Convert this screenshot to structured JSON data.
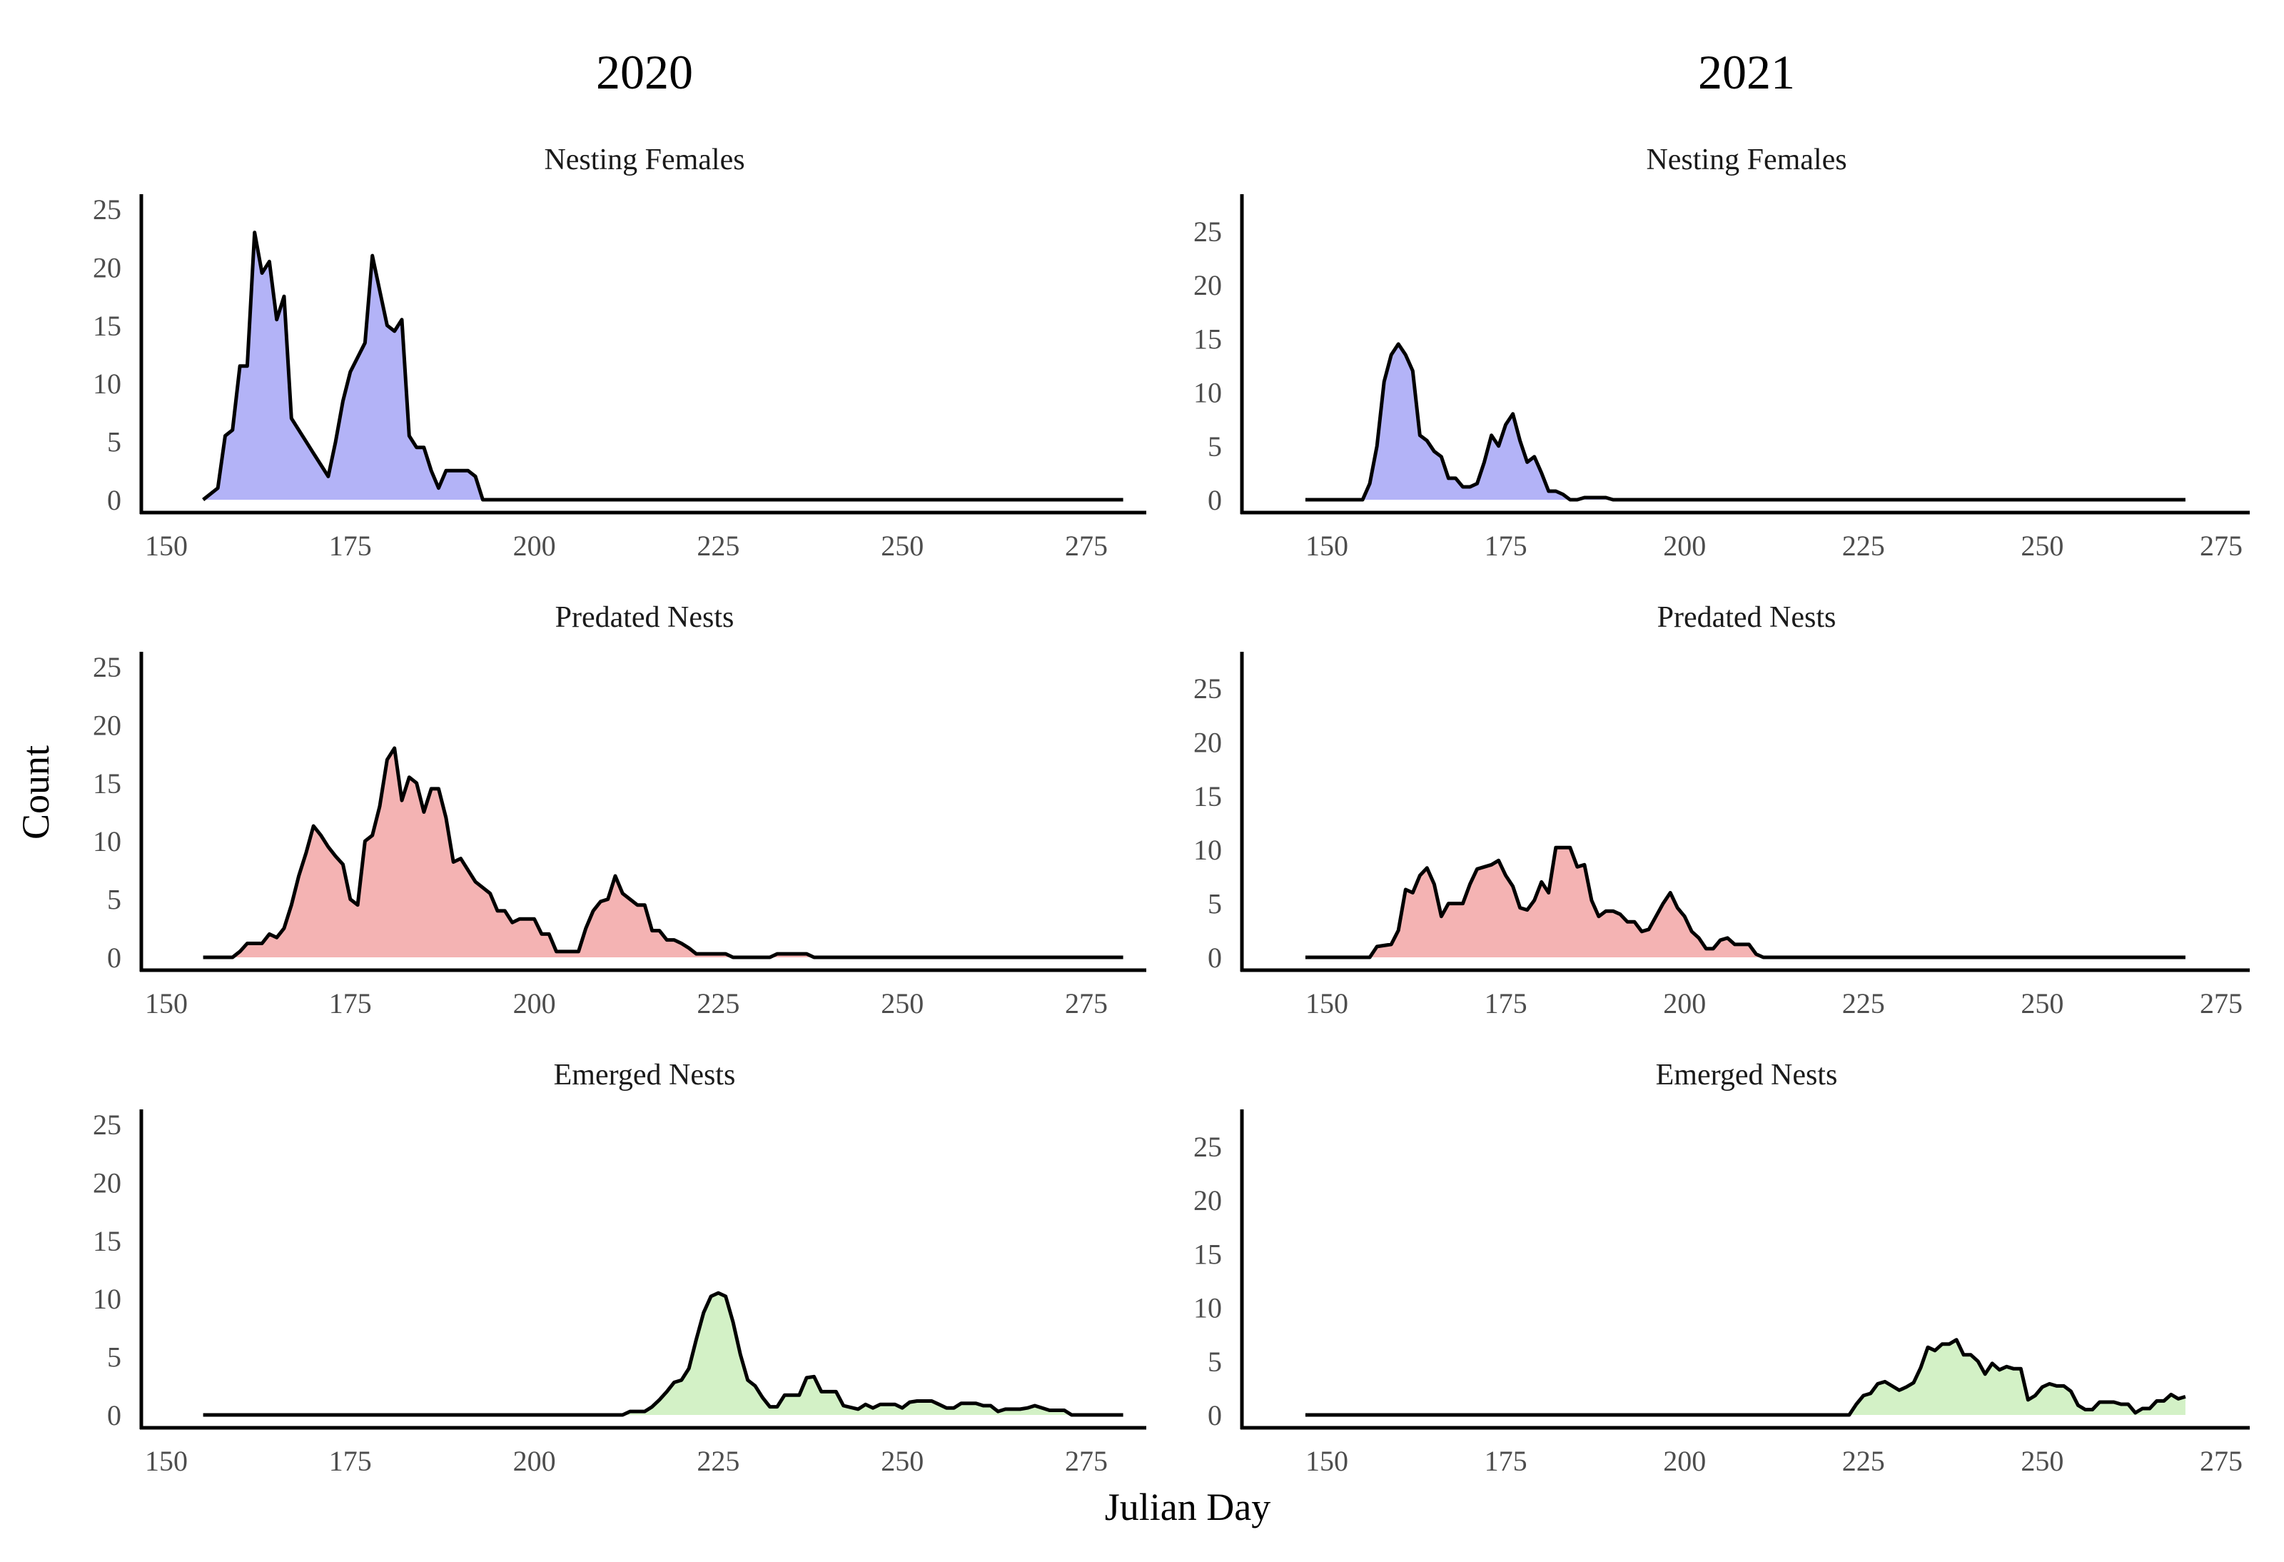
{
  "figure": {
    "years": [
      "2020",
      "2021"
    ],
    "panel_titles": [
      "Nesting Females",
      "Predated Nests",
      "Emerged Nests"
    ],
    "ylabel": "Count",
    "xlabel": "Julian Day",
    "colors": {
      "nesting": "#b3b3f7",
      "predated": "#f4b3b3",
      "emerged": "#d3f1c6",
      "line": "#000000",
      "tick_text": "#4d4d4d"
    }
  },
  "chart_data": [
    {
      "type": "area",
      "year": "2020",
      "title": "Nesting Females",
      "xlim": [
        155,
        280
      ],
      "ylim": [
        0,
        26
      ],
      "xticks": [
        150,
        175,
        200,
        225,
        250,
        275
      ],
      "yticks": [
        0,
        5,
        10,
        15,
        20,
        25
      ],
      "points": [
        [
          155,
          0
        ],
        [
          157,
          1
        ],
        [
          158,
          5.5
        ],
        [
          159,
          6
        ],
        [
          160,
          11.5
        ],
        [
          161,
          11.5
        ],
        [
          162,
          23
        ],
        [
          163,
          19.5
        ],
        [
          164,
          20.5
        ],
        [
          165,
          15.5
        ],
        [
          166,
          17.5
        ],
        [
          167,
          7
        ],
        [
          168,
          6
        ],
        [
          169,
          5
        ],
        [
          170,
          4
        ],
        [
          172,
          2
        ],
        [
          173,
          5
        ],
        [
          174,
          8.5
        ],
        [
          175,
          11
        ],
        [
          177,
          13.5
        ],
        [
          178,
          21
        ],
        [
          179,
          18
        ],
        [
          180,
          15
        ],
        [
          181,
          14.5
        ],
        [
          182,
          15.5
        ],
        [
          183,
          5.5
        ],
        [
          184,
          4.5
        ],
        [
          185,
          4.5
        ],
        [
          186,
          2.5
        ],
        [
          187,
          1
        ],
        [
          188,
          2.5
        ],
        [
          190,
          2.5
        ],
        [
          191,
          2.5
        ],
        [
          192,
          2
        ],
        [
          193,
          0
        ],
        [
          280,
          0
        ]
      ]
    },
    {
      "type": "area",
      "year": "2021",
      "title": "Nesting Females",
      "xlim": [
        147,
        270
      ],
      "ylim": [
        0,
        28
      ],
      "xticks": [
        150,
        175,
        200,
        225,
        250,
        275
      ],
      "yticks": [
        0,
        5,
        10,
        15,
        20,
        25
      ],
      "points": [
        [
          147,
          0
        ],
        [
          155,
          0
        ],
        [
          156,
          1.5
        ],
        [
          157,
          5
        ],
        [
          158,
          11
        ],
        [
          159,
          13.5
        ],
        [
          160,
          14.5
        ],
        [
          161,
          13.5
        ],
        [
          162,
          12
        ],
        [
          163,
          6
        ],
        [
          164,
          5.5
        ],
        [
          165,
          4.5
        ],
        [
          166,
          4
        ],
        [
          167,
          2
        ],
        [
          168,
          2
        ],
        [
          169,
          1.2
        ],
        [
          170,
          1.2
        ],
        [
          171,
          1.5
        ],
        [
          172,
          3.5
        ],
        [
          173,
          6
        ],
        [
          174,
          5
        ],
        [
          175,
          7
        ],
        [
          176,
          8
        ],
        [
          177,
          5.5
        ],
        [
          178,
          3.5
        ],
        [
          179,
          4
        ],
        [
          180,
          2.5
        ],
        [
          181,
          0.8
        ],
        [
          182,
          0.8
        ],
        [
          183,
          0.5
        ],
        [
          184,
          0
        ],
        [
          185,
          0
        ],
        [
          186,
          0.2
        ],
        [
          189,
          0.2
        ],
        [
          190,
          0
        ],
        [
          270,
          0
        ]
      ]
    },
    {
      "type": "area",
      "year": "2020",
      "title": "Predated Nests",
      "xlim": [
        155,
        280
      ],
      "ylim": [
        0,
        26
      ],
      "xticks": [
        150,
        175,
        200,
        225,
        250,
        275
      ],
      "yticks": [
        0,
        5,
        10,
        15,
        20,
        25
      ],
      "points": [
        [
          155,
          0
        ],
        [
          159,
          0
        ],
        [
          160,
          0.5
        ],
        [
          161,
          1.2
        ],
        [
          162,
          1.2
        ],
        [
          163,
          1.2
        ],
        [
          164,
          2
        ],
        [
          165,
          1.7
        ],
        [
          166,
          2.5
        ],
        [
          167,
          4.5
        ],
        [
          168,
          7
        ],
        [
          169,
          9
        ],
        [
          170,
          11.3
        ],
        [
          171,
          10.5
        ],
        [
          172,
          9.5
        ],
        [
          173,
          8.7
        ],
        [
          174,
          8
        ],
        [
          175,
          5
        ],
        [
          176,
          4.5
        ],
        [
          177,
          10
        ],
        [
          178,
          10.5
        ],
        [
          179,
          13
        ],
        [
          180,
          17
        ],
        [
          181,
          18
        ],
        [
          182,
          13.5
        ],
        [
          183,
          15.5
        ],
        [
          184,
          15
        ],
        [
          185,
          12.5
        ],
        [
          186,
          14.5
        ],
        [
          187,
          14.5
        ],
        [
          188,
          12
        ],
        [
          189,
          8.2
        ],
        [
          190,
          8.5
        ],
        [
          191,
          7.5
        ],
        [
          192,
          6.5
        ],
        [
          193,
          6
        ],
        [
          194,
          5.5
        ],
        [
          195,
          4
        ],
        [
          196,
          4
        ],
        [
          197,
          3
        ],
        [
          198,
          3.3
        ],
        [
          199,
          3.3
        ],
        [
          200,
          3.3
        ],
        [
          201,
          2
        ],
        [
          202,
          2
        ],
        [
          203,
          0.5
        ],
        [
          206,
          0.5
        ],
        [
          207,
          2.5
        ],
        [
          208,
          4
        ],
        [
          209,
          4.8
        ],
        [
          210,
          5
        ],
        [
          211,
          7
        ],
        [
          212,
          5.5
        ],
        [
          213,
          5
        ],
        [
          214,
          4.5
        ],
        [
          215,
          4.5
        ],
        [
          216,
          2.3
        ],
        [
          217,
          2.3
        ],
        [
          218,
          1.5
        ],
        [
          219,
          1.5
        ],
        [
          220,
          1.2
        ],
        [
          221,
          0.8
        ],
        [
          222,
          0.3
        ],
        [
          226,
          0.3
        ],
        [
          227,
          0
        ],
        [
          232,
          0
        ],
        [
          233,
          0.3
        ],
        [
          237,
          0.3
        ],
        [
          238,
          0
        ],
        [
          280,
          0
        ]
      ]
    },
    {
      "type": "area",
      "year": "2021",
      "title": "Predated Nests",
      "xlim": [
        147,
        270
      ],
      "ylim": [
        0,
        28
      ],
      "xticks": [
        150,
        175,
        200,
        225,
        250,
        275
      ],
      "yticks": [
        0,
        5,
        10,
        15,
        20,
        25
      ],
      "points": [
        [
          147,
          0
        ],
        [
          156,
          0
        ],
        [
          157,
          1
        ],
        [
          159,
          1.2
        ],
        [
          160,
          2.5
        ],
        [
          161,
          6.3
        ],
        [
          162,
          6
        ],
        [
          163,
          7.6
        ],
        [
          164,
          8.3
        ],
        [
          165,
          6.8
        ],
        [
          166,
          3.8
        ],
        [
          167,
          5
        ],
        [
          169,
          5
        ],
        [
          170,
          6.8
        ],
        [
          171,
          8.2
        ],
        [
          173,
          8.6
        ],
        [
          174,
          9
        ],
        [
          175,
          7.6
        ],
        [
          176,
          6.6
        ],
        [
          177,
          4.6
        ],
        [
          178,
          4.4
        ],
        [
          179,
          5.3
        ],
        [
          180,
          7
        ],
        [
          181,
          6
        ],
        [
          182,
          10.2
        ],
        [
          184,
          10.2
        ],
        [
          185,
          8.4
        ],
        [
          186,
          8.6
        ],
        [
          187,
          5.3
        ],
        [
          188,
          3.8
        ],
        [
          189,
          4.3
        ],
        [
          190,
          4.3
        ],
        [
          191,
          4
        ],
        [
          192,
          3.3
        ],
        [
          193,
          3.3
        ],
        [
          194,
          2.4
        ],
        [
          195,
          2.6
        ],
        [
          196,
          3.8
        ],
        [
          197,
          5
        ],
        [
          198,
          6
        ],
        [
          199,
          4.6
        ],
        [
          200,
          3.8
        ],
        [
          201,
          2.4
        ],
        [
          202,
          1.8
        ],
        [
          203,
          0.8
        ],
        [
          204,
          0.8
        ],
        [
          205,
          1.6
        ],
        [
          206,
          1.8
        ],
        [
          207,
          1.2
        ],
        [
          208,
          1.2
        ],
        [
          209,
          1.2
        ],
        [
          210,
          0.3
        ],
        [
          211,
          0
        ],
        [
          270,
          0
        ]
      ]
    },
    {
      "type": "area",
      "year": "2020",
      "title": "Emerged Nests",
      "xlim": [
        155,
        280
      ],
      "ylim": [
        0,
        26
      ],
      "xticks": [
        150,
        175,
        200,
        225,
        250,
        275
      ],
      "yticks": [
        0,
        5,
        10,
        15,
        20,
        25
      ],
      "points": [
        [
          155,
          0
        ],
        [
          212,
          0
        ],
        [
          213,
          0.3
        ],
        [
          215,
          0.3
        ],
        [
          216,
          0.7
        ],
        [
          217,
          1.3
        ],
        [
          218,
          2
        ],
        [
          219,
          2.8
        ],
        [
          220,
          3
        ],
        [
          221,
          4
        ],
        [
          222,
          6.5
        ],
        [
          223,
          8.8
        ],
        [
          224,
          10.2
        ],
        [
          225,
          10.5
        ],
        [
          226,
          10.2
        ],
        [
          227,
          8
        ],
        [
          228,
          5.2
        ],
        [
          229,
          3
        ],
        [
          230,
          2.5
        ],
        [
          231,
          1.5
        ],
        [
          232,
          0.7
        ],
        [
          233,
          0.7
        ],
        [
          234,
          1.7
        ],
        [
          236,
          1.7
        ],
        [
          237,
          3.2
        ],
        [
          238,
          3.3
        ],
        [
          239,
          2
        ],
        [
          241,
          2
        ],
        [
          242,
          0.8
        ],
        [
          244,
          0.5
        ],
        [
          245,
          0.9
        ],
        [
          246,
          0.6
        ],
        [
          247,
          0.9
        ],
        [
          248,
          0.9
        ],
        [
          249,
          0.9
        ],
        [
          250,
          0.6
        ],
        [
          251,
          1.1
        ],
        [
          252,
          1.2
        ],
        [
          253,
          1.2
        ],
        [
          254,
          1.2
        ],
        [
          255,
          0.9
        ],
        [
          256,
          0.6
        ],
        [
          257,
          0.6
        ],
        [
          258,
          1
        ],
        [
          260,
          1
        ],
        [
          261,
          0.8
        ],
        [
          262,
          0.8
        ],
        [
          263,
          0.3
        ],
        [
          264,
          0.5
        ],
        [
          266,
          0.5
        ],
        [
          267,
          0.6
        ],
        [
          268,
          0.8
        ],
        [
          269,
          0.6
        ],
        [
          270,
          0.4
        ],
        [
          272,
          0.4
        ],
        [
          273,
          0
        ],
        [
          280,
          0
        ]
      ]
    },
    {
      "type": "area",
      "year": "2021",
      "title": "Emerged Nests",
      "xlim": [
        147,
        270
      ],
      "ylim": [
        0,
        28
      ],
      "xticks": [
        150,
        175,
        200,
        225,
        250,
        275
      ],
      "yticks": [
        0,
        5,
        10,
        15,
        20,
        25
      ],
      "points": [
        [
          147,
          0
        ],
        [
          223,
          0
        ],
        [
          224,
          1
        ],
        [
          225,
          1.8
        ],
        [
          226,
          2
        ],
        [
          227,
          2.9
        ],
        [
          228,
          3.1
        ],
        [
          229,
          2.7
        ],
        [
          230,
          2.3
        ],
        [
          231,
          2.6
        ],
        [
          232,
          3
        ],
        [
          233,
          4.4
        ],
        [
          234,
          6.3
        ],
        [
          235,
          6
        ],
        [
          236,
          6.6
        ],
        [
          237,
          6.6
        ],
        [
          238,
          7
        ],
        [
          239,
          5.6
        ],
        [
          240,
          5.6
        ],
        [
          241,
          5
        ],
        [
          242,
          3.8
        ],
        [
          243,
          4.8
        ],
        [
          244,
          4.2
        ],
        [
          245,
          4.5
        ],
        [
          246,
          4.3
        ],
        [
          247,
          4.3
        ],
        [
          248,
          1.4
        ],
        [
          249,
          1.8
        ],
        [
          250,
          2.6
        ],
        [
          251,
          2.9
        ],
        [
          252,
          2.7
        ],
        [
          253,
          2.7
        ],
        [
          254,
          2.2
        ],
        [
          255,
          0.9
        ],
        [
          256,
          0.5
        ],
        [
          257,
          0.5
        ],
        [
          258,
          1.2
        ],
        [
          260,
          1.2
        ],
        [
          261,
          1
        ],
        [
          262,
          1
        ],
        [
          263,
          0.2
        ],
        [
          264,
          0.6
        ],
        [
          265,
          0.6
        ],
        [
          266,
          1.3
        ],
        [
          267,
          1.3
        ],
        [
          268,
          1.9
        ],
        [
          269,
          1.5
        ],
        [
          270,
          1.7
        ]
      ]
    }
  ]
}
